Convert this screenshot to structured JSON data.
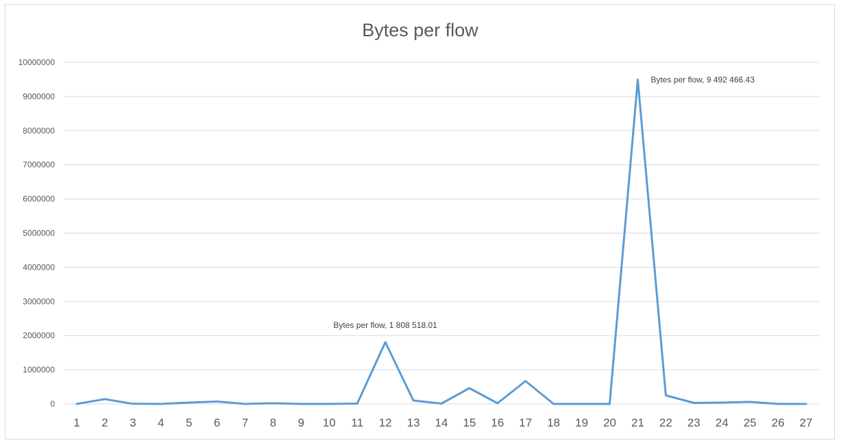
{
  "chart_data": {
    "type": "line",
    "title": "Bytes per flow",
    "xlabel": "",
    "ylabel": "",
    "categories": [
      "1",
      "2",
      "3",
      "4",
      "5",
      "6",
      "7",
      "8",
      "9",
      "10",
      "11",
      "12",
      "13",
      "14",
      "15",
      "16",
      "17",
      "18",
      "19",
      "20",
      "21",
      "22",
      "23",
      "24",
      "25",
      "26",
      "27"
    ],
    "series": [
      {
        "name": "Bytes per flow",
        "color": "#5b9bd5",
        "values": [
          0,
          140000,
          5000,
          0,
          40000,
          70000,
          0,
          20000,
          0,
          0,
          10000,
          1808518.01,
          100000,
          10000,
          460000,
          20000,
          670000,
          0,
          0,
          0,
          9492466.43,
          250000,
          30000,
          40000,
          60000,
          0,
          0
        ]
      }
    ],
    "y_ticks": [
      "0",
      "1000000",
      "2000000",
      "3000000",
      "4000000",
      "5000000",
      "6000000",
      "7000000",
      "8000000",
      "9000000",
      "10000000"
    ],
    "ylim": [
      0,
      10000000
    ],
    "grid": true,
    "legend": "none",
    "data_labels": [
      {
        "index": 11,
        "text": "Bytes per flow, 1 808 518.01"
      },
      {
        "index": 20,
        "text": "Bytes per flow, 9 492 466.43"
      }
    ]
  }
}
